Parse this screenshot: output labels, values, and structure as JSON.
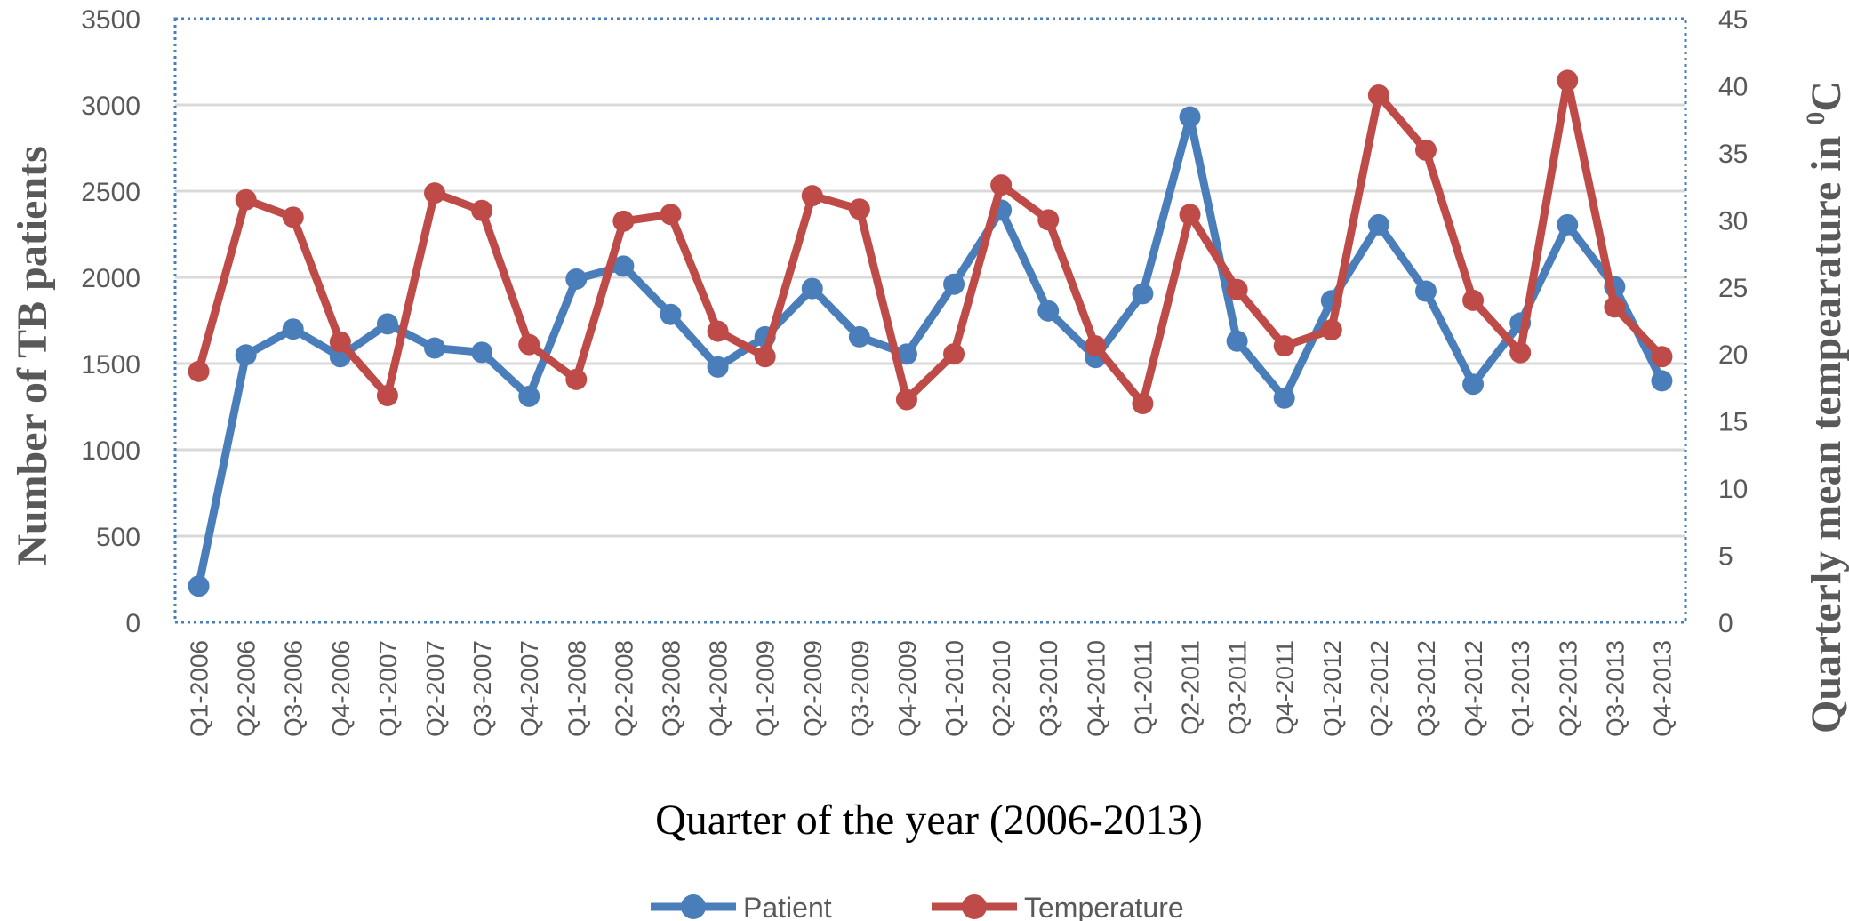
{
  "chart_data": {
    "type": "line",
    "categories": [
      "Q1-2006",
      "Q2-2006",
      "Q3-2006",
      "Q4-2006",
      "Q1-2007",
      "Q2-2007",
      "Q3-2007",
      "Q4-2007",
      "Q1-2008",
      "Q2-2008",
      "Q3-2008",
      "Q4-2008",
      "Q1-2009",
      "Q2-2009",
      "Q3-2009",
      "Q4-2009",
      "Q1-2010",
      "Q2-2010",
      "Q3-2010",
      "Q4-2010",
      "Q1-2011",
      "Q2-2011",
      "Q3-2011",
      "Q4-2011",
      "Q1-2012",
      "Q2-2012",
      "Q3-2012",
      "Q4-2012",
      "Q1-2013",
      "Q2-2013",
      "Q3-2013",
      "Q4-2013"
    ],
    "series": [
      {
        "name": "Patient",
        "axis": "left",
        "color": "#4a7ebb",
        "values": [
          210,
          1550,
          1700,
          1540,
          1730,
          1590,
          1565,
          1310,
          1990,
          2065,
          1785,
          1480,
          1655,
          1935,
          1655,
          1555,
          1960,
          2390,
          1805,
          1535,
          1905,
          2930,
          1630,
          1300,
          1865,
          2305,
          1920,
          1380,
          1735,
          2305,
          1945,
          1400
        ]
      },
      {
        "name": "Temperature",
        "axis": "right",
        "color": "#be4b48",
        "values": [
          18.7,
          31.5,
          30.2,
          20.9,
          16.9,
          32.0,
          30.7,
          20.7,
          18.1,
          29.9,
          30.4,
          21.7,
          19.8,
          31.8,
          30.8,
          16.6,
          20.0,
          32.6,
          30.0,
          20.6,
          16.3,
          30.4,
          24.8,
          20.6,
          21.8,
          39.3,
          35.2,
          24.0,
          20.1,
          40.4,
          23.5,
          19.8
        ]
      }
    ],
    "title": "",
    "xlabel": "Quarter of the year (2006-2013)",
    "ylabel": "Number of TB patients",
    "y2label_main": "Quarterly mean tempearature in ",
    "y2label_sup": "0",
    "y2label_unit": "C",
    "ylim": [
      0,
      3500
    ],
    "y2lim": [
      0,
      45
    ],
    "yticks": [
      "0",
      "500",
      "1000",
      "1500",
      "2000",
      "2500",
      "3000",
      "3500"
    ],
    "y2ticks": [
      "0",
      "5",
      "10",
      "15",
      "20",
      "25",
      "30",
      "35",
      "40",
      "45"
    ],
    "grid": true,
    "legend": "bottom-center"
  }
}
